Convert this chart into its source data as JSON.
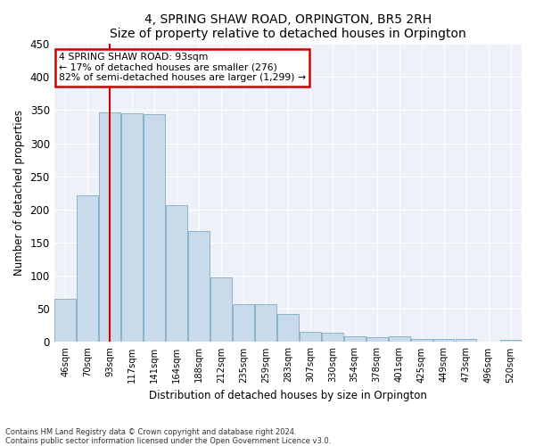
{
  "title": "4, SPRING SHAW ROAD, ORPINGTON, BR5 2RH",
  "subtitle": "Size of property relative to detached houses in Orpington",
  "xlabel": "Distribution of detached houses by size in Orpington",
  "ylabel": "Number of detached properties",
  "bar_color": "#c9daea",
  "bar_edge_color": "#8ab4cc",
  "background_color": "#eef2f8",
  "grid_color": "#ffffff",
  "annotation_line_color": "#cc0000",
  "annotation_box_color": "#cc0000",
  "annotation_text_line1": "4 SPRING SHAW ROAD: 93sqm",
  "annotation_text_line2": "← 17% of detached houses are smaller (276)",
  "annotation_text_line3": "82% of semi-detached houses are larger (1,299) →",
  "property_idx": 2,
  "categories": [
    "46sqm",
    "70sqm",
    "93sqm",
    "117sqm",
    "141sqm",
    "164sqm",
    "188sqm",
    "212sqm",
    "235sqm",
    "259sqm",
    "283sqm",
    "307sqm",
    "330sqm",
    "354sqm",
    "378sqm",
    "401sqm",
    "425sqm",
    "449sqm",
    "473sqm",
    "496sqm",
    "520sqm"
  ],
  "values": [
    65,
    222,
    347,
    345,
    344,
    207,
    168,
    97,
    57,
    57,
    42,
    15,
    14,
    8,
    7,
    8,
    5,
    5,
    4,
    1,
    3
  ],
  "ylim": [
    0,
    450
  ],
  "yticks": [
    0,
    50,
    100,
    150,
    200,
    250,
    300,
    350,
    400,
    450
  ],
  "footnote1": "Contains HM Land Registry data © Crown copyright and database right 2024.",
  "footnote2": "Contains public sector information licensed under the Open Government Licence v3.0."
}
